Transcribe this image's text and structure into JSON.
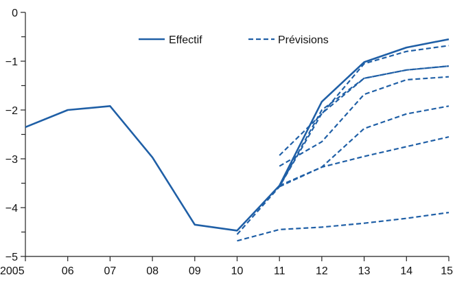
{
  "chart_data": {
    "type": "line",
    "title": "",
    "xlabel": "",
    "ylabel": "",
    "x_tick_labels": [
      "2005",
      "06",
      "07",
      "08",
      "09",
      "10",
      "11",
      "12",
      "13",
      "14",
      "15"
    ],
    "y_tick_labels": [
      "0",
      "−1",
      "−2",
      "−3",
      "−4",
      "−5"
    ],
    "xlim": [
      2005,
      2015
    ],
    "ylim": [
      -5,
      0
    ],
    "y_major_ticks": [
      0,
      -1,
      -2,
      -3,
      -4,
      -5
    ],
    "y_minor_ticks": [
      -0.5,
      -1.5,
      -2.5,
      -3.5,
      -4.5
    ],
    "grid": false,
    "legend_position": "top-center",
    "colors": {
      "series": "#1f5fa6",
      "axis": "#222222"
    },
    "series": [
      {
        "name": "Effectif",
        "style": "solid",
        "x": [
          2005,
          2006,
          2007,
          2008,
          2009,
          2010,
          2011,
          2012,
          2013,
          2014,
          2015
        ],
        "y": [
          -2.35,
          -2.0,
          -1.92,
          -2.97,
          -4.35,
          -4.47,
          -3.55,
          -1.83,
          -1.02,
          -0.72,
          -0.55
        ]
      },
      {
        "name": "Prévisions",
        "style": "dashed",
        "x": [
          2011,
          2012,
          2013,
          2014,
          2015
        ],
        "y": [
          -2.93,
          -2.08,
          -1.05,
          -0.8,
          -0.68
        ]
      },
      {
        "name": "",
        "style": "dashed",
        "x": [
          2011,
          2012,
          2013,
          2014,
          2015
        ],
        "y": [
          -3.15,
          -2.65,
          -1.68,
          -1.38,
          -1.32
        ]
      },
      {
        "name": "",
        "style": "dashed",
        "x": [
          2011,
          2012,
          2013,
          2014,
          2015
        ],
        "y": [
          -3.55,
          -3.17,
          -2.38,
          -2.08,
          -1.92
        ]
      },
      {
        "name": "",
        "style": "dashed",
        "x": [
          2011,
          2012,
          2013,
          2014,
          2015
        ],
        "y": [
          -3.57,
          -2.0,
          -1.35,
          -1.18,
          -1.1
        ]
      },
      {
        "name": "",
        "style": "dashed",
        "x": [
          2011,
          2012,
          2013,
          2014,
          2015
        ],
        "y": [
          -3.57,
          -3.17,
          -2.95,
          -2.75,
          -2.55
        ]
      },
      {
        "name": "",
        "style": "dashed",
        "x": [
          2010,
          2011,
          2012,
          2013,
          2014,
          2015
        ],
        "y": [
          -4.55,
          -3.57,
          -2.07,
          -1.35,
          -1.18,
          -1.1
        ]
      },
      {
        "name": "",
        "style": "dashed",
        "x": [
          2010,
          2011,
          2012,
          2013,
          2014,
          2015
        ],
        "y": [
          -4.68,
          -4.45,
          -4.4,
          -4.32,
          -4.22,
          -4.1
        ]
      }
    ]
  }
}
